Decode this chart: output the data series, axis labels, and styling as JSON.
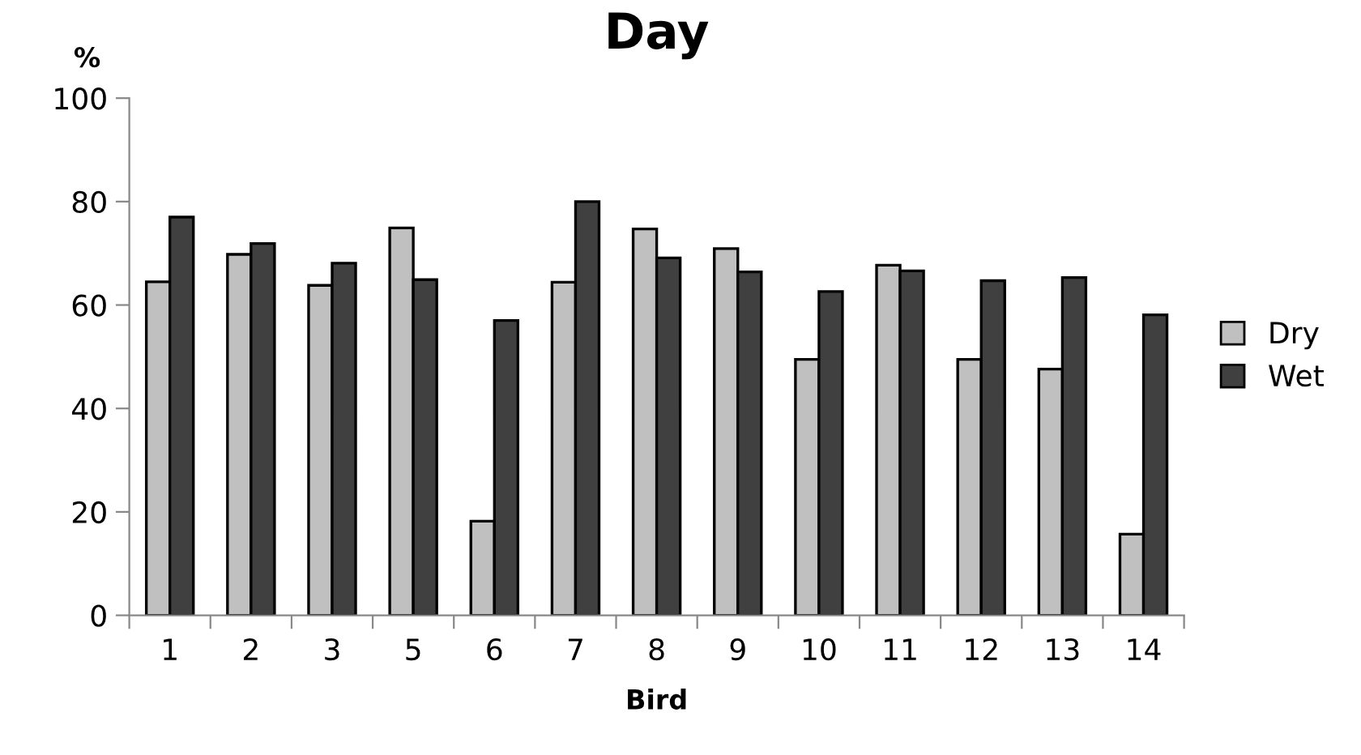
{
  "chart_data": {
    "type": "bar",
    "title": "Day",
    "xlabel": "Bird",
    "ylabel": "%",
    "categories": [
      "1",
      "2",
      "3",
      "5",
      "6",
      "7",
      "8",
      "9",
      "10",
      "11",
      "12",
      "13",
      "14"
    ],
    "series": [
      {
        "name": "Dry",
        "color": "#c0c0c0",
        "values": [
          64.5,
          69.8,
          63.8,
          74.9,
          18.2,
          64.4,
          74.7,
          70.9,
          49.5,
          67.7,
          49.5,
          47.6,
          15.7
        ]
      },
      {
        "name": "Wet",
        "color": "#404040",
        "values": [
          77.0,
          71.9,
          68.1,
          64.9,
          57.0,
          80.0,
          69.1,
          66.4,
          62.6,
          66.6,
          64.7,
          65.3,
          58.1
        ]
      }
    ],
    "ylim": [
      0,
      100
    ],
    "yticks": [
      0,
      20,
      40,
      60,
      80,
      100
    ],
    "grid": false,
    "legend": "right"
  }
}
